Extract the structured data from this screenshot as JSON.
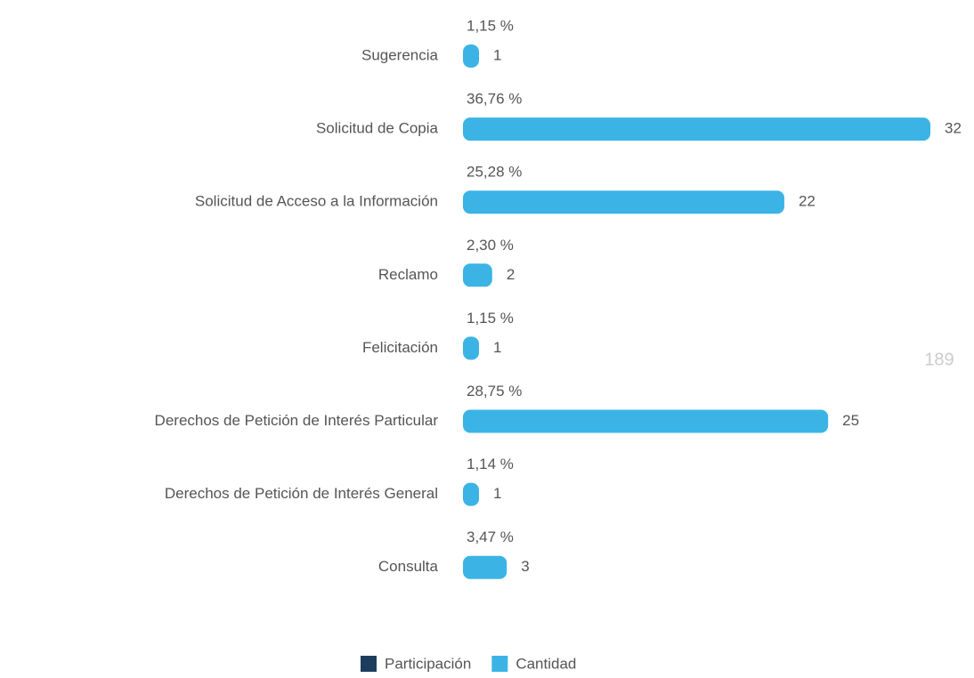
{
  "chart_data": {
    "type": "hbar",
    "categories": [
      "Sugerencia",
      "Solicitud de Copia",
      "Solicitud de Acceso a la Información",
      "Reclamo",
      "Felicitación",
      "Derechos de Petición de Interés Particular",
      "Derechos de Petición de Interés General",
      "Consulta"
    ],
    "series": [
      {
        "name": "Participación",
        "color": "#1c3d5e",
        "values": [
          1.15,
          36.76,
          25.28,
          2.3,
          1.15,
          28.75,
          1.14,
          3.47
        ],
        "value_labels": [
          "1,15 %",
          "36,76 %",
          "25,28 %",
          "2,30 %",
          "1,15 %",
          "28,75 %",
          "1,14 %",
          "3,47 %"
        ]
      },
      {
        "name": "Cantidad",
        "color": "#3bb4e5",
        "values": [
          1,
          32,
          22,
          2,
          1,
          25,
          1,
          3
        ]
      }
    ],
    "xlim": [
      0,
      32
    ],
    "annotation": "189",
    "legend": "bottom"
  }
}
